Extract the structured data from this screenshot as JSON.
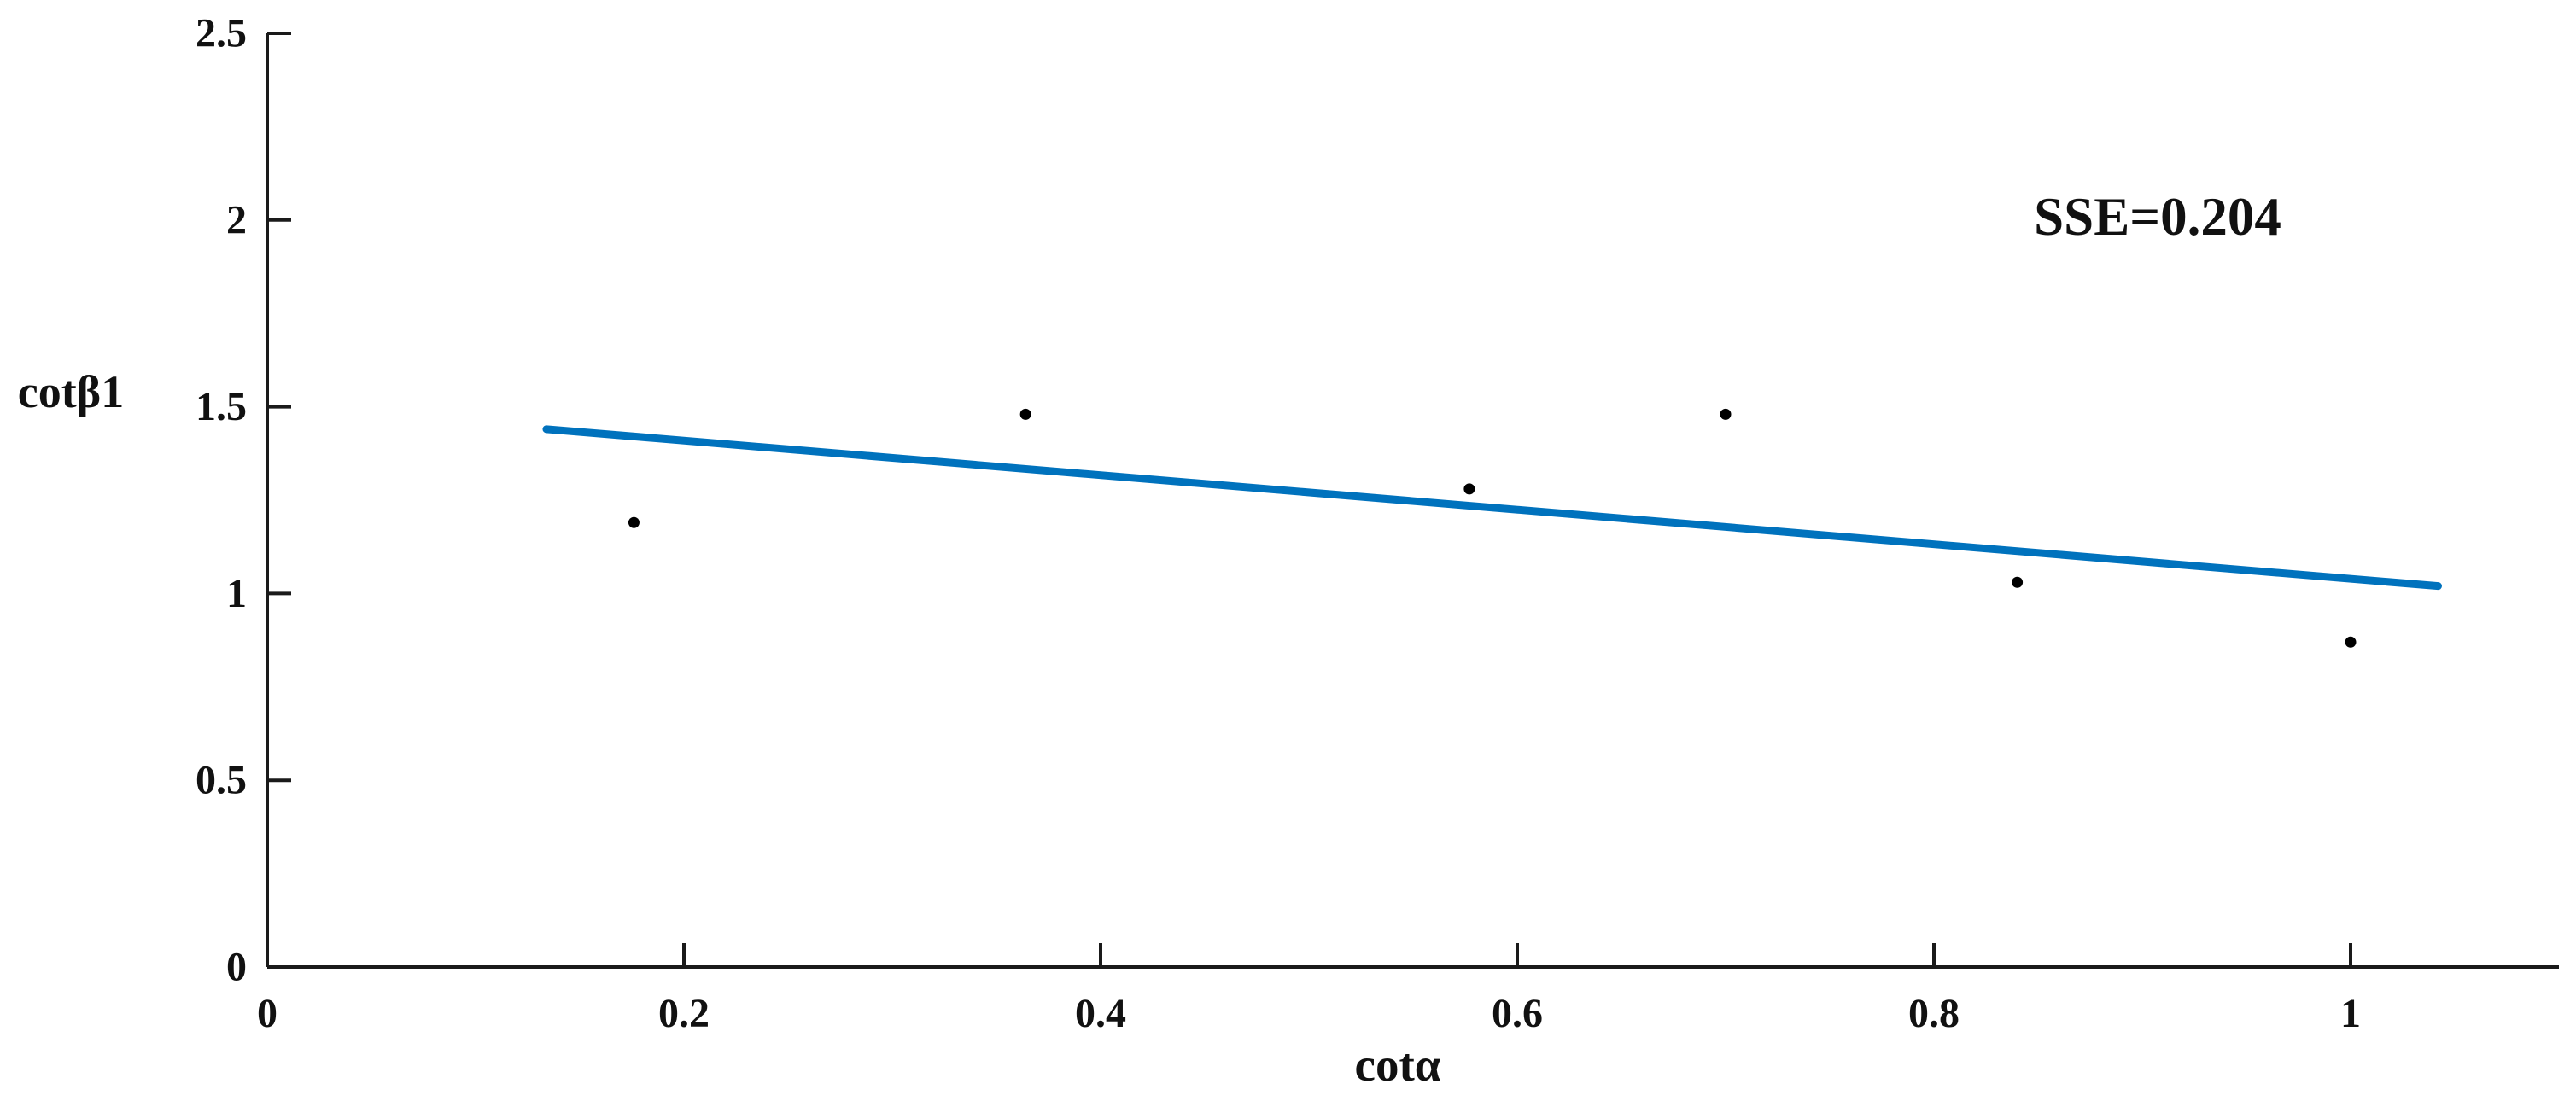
{
  "figure": {
    "background": "#ffffff",
    "axis_color": "#1a1a1a",
    "text_color": "#111111"
  },
  "chart_data": {
    "type": "scatter",
    "title": "",
    "xlabel": "cotα",
    "ylabel": "cotβ1",
    "annotation": {
      "text": "SSE=0.204",
      "x": 0.907,
      "y": 2.0
    },
    "xlim": [
      0,
      1.1
    ],
    "ylim": [
      0,
      2.5
    ],
    "xticks": [
      0,
      0.2,
      0.4,
      0.6,
      0.8,
      1
    ],
    "xtick_labels": [
      "0",
      "0.2",
      "0.4",
      "0.6",
      "0.8",
      "1"
    ],
    "yticks": [
      0,
      0.5,
      1,
      1.5,
      2,
      2.5
    ],
    "ytick_labels": [
      "0",
      "0.5",
      "1",
      "1.5",
      "2",
      "2.5"
    ],
    "grid": false,
    "legend": null,
    "box": "left-bottom-spines-only",
    "tick_direction": "in",
    "series": [
      {
        "name": "observations",
        "kind": "scatter",
        "color": "#000000",
        "marker": "point",
        "marker_radius": 6.5,
        "points": [
          [
            0.176,
            1.19
          ],
          [
            0.364,
            1.48
          ],
          [
            0.577,
            1.28
          ],
          [
            0.7,
            1.48
          ],
          [
            0.84,
            1.03
          ],
          [
            1.0,
            0.87
          ]
        ]
      },
      {
        "name": "linear-fit",
        "kind": "line",
        "color": "#0072BD",
        "line_width": 9,
        "points": [
          [
            0.134,
            1.44
          ],
          [
            1.042,
            1.02
          ]
        ]
      }
    ]
  }
}
